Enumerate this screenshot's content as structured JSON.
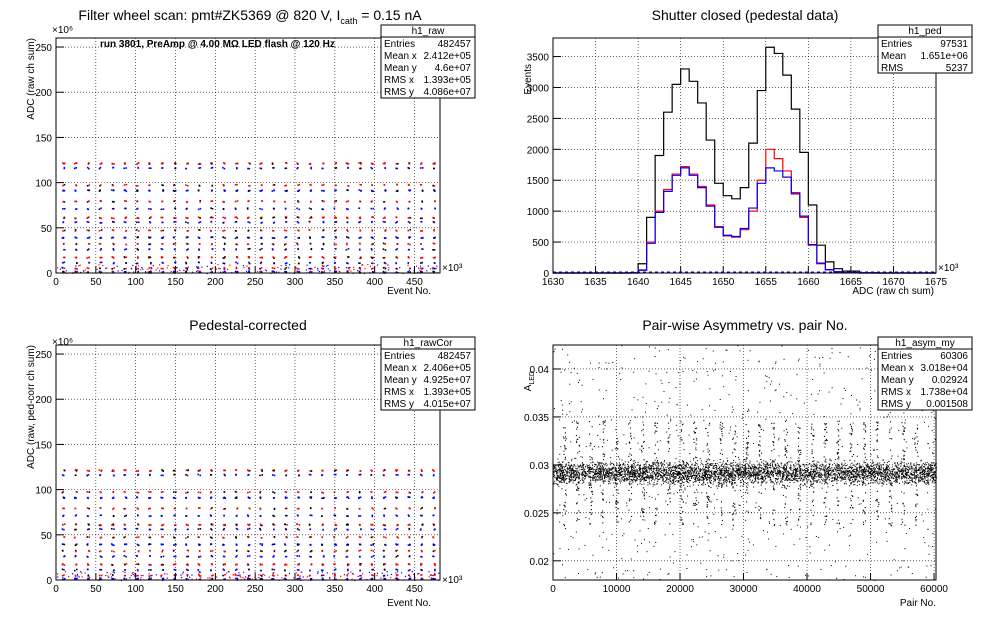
{
  "chart_data": [
    {
      "type": "scatter",
      "title": "Filter wheel scan: pmt#ZK5369 @   820 V, I",
      "title_sub": "cath",
      "title_tail": " = 0.15 nA",
      "annotation": "run 3801, PreAmp @ 4.00 MΩ LED flash @  120 Hz",
      "xlabel": "Event No.",
      "ylabel": "ADC (raw ch sum)",
      "x_exponent": "×10³",
      "y_exponent": "×10⁶",
      "xlim": [
        0,
        482
      ],
      "ylim": [
        0,
        260
      ],
      "xticks": [
        "0",
        "50",
        "100",
        "150",
        "200",
        "250",
        "300",
        "350",
        "400",
        "450"
      ],
      "yticks": [
        "0",
        "50",
        "100",
        "150",
        "200",
        "250"
      ],
      "grid": true,
      "series_colors": [
        "#ff0000",
        "#0000ff"
      ],
      "point_rows": [
        122,
        117,
        98,
        92,
        80,
        72,
        62,
        57,
        48,
        40,
        33,
        27,
        18,
        12,
        6,
        2
      ],
      "stats": {
        "name": "h1_raw",
        "rows": [
          {
            "label": "Entries",
            "value": "482457"
          },
          {
            "label": "Mean x",
            "value": "2.412e+05"
          },
          {
            "label": "Mean y",
            "value": "4.6e+07"
          },
          {
            "label": "RMS x",
            "value": "1.393e+05"
          },
          {
            "label": "RMS y",
            "value": "4.086e+07"
          }
        ]
      }
    },
    {
      "type": "line",
      "title": "Shutter closed (pedestal data)",
      "xlabel": "ADC (raw ch sum)",
      "ylabel": "Events",
      "x_exponent": "×10³",
      "xlim": [
        1630,
        1675
      ],
      "ylim": [
        0,
        3800
      ],
      "xticks": [
        "1630",
        "1635",
        "1640",
        "1645",
        "1650",
        "1655",
        "1660",
        "1665",
        "1670",
        "1675"
      ],
      "yticks": [
        "0",
        "500",
        "1000",
        "1500",
        "2000",
        "2500",
        "3000",
        "3500"
      ],
      "grid": true,
      "x": [
        1630,
        1632,
        1634,
        1636,
        1638,
        1639,
        1640,
        1641,
        1642,
        1643,
        1644,
        1645,
        1646,
        1647,
        1648,
        1649,
        1650,
        1651,
        1652,
        1653,
        1654,
        1655,
        1656,
        1657,
        1658,
        1659,
        1660,
        1661,
        1662,
        1663,
        1664,
        1666,
        1668,
        1670,
        1672,
        1675
      ],
      "series": [
        {
          "color": "#000000",
          "values": [
            0,
            0,
            0,
            0,
            0,
            5,
            150,
            900,
            1900,
            2600,
            3050,
            3300,
            3100,
            2750,
            2150,
            1450,
            1250,
            1200,
            1380,
            2100,
            2950,
            3650,
            3550,
            3200,
            2650,
            1950,
            1100,
            450,
            180,
            70,
            30,
            5,
            0,
            0,
            0,
            0
          ]
        },
        {
          "color": "#ff0000",
          "values": [
            0,
            0,
            0,
            0,
            0,
            0,
            50,
            500,
            1000,
            1350,
            1600,
            1720,
            1600,
            1400,
            1100,
            750,
            600,
            580,
            700,
            1000,
            1500,
            2000,
            1850,
            1650,
            1300,
            900,
            450,
            150,
            50,
            20,
            5,
            0,
            0,
            0,
            0,
            0
          ]
        },
        {
          "color": "#0000ff",
          "values": [
            0,
            0,
            0,
            0,
            0,
            0,
            45,
            480,
            980,
            1320,
            1580,
            1700,
            1580,
            1380,
            1080,
            740,
            610,
            590,
            720,
            1050,
            1450,
            1700,
            1650,
            1550,
            1280,
            920,
            460,
            160,
            55,
            20,
            5,
            0,
            0,
            0,
            0,
            0
          ]
        }
      ],
      "stats": {
        "name": "h1_ped",
        "rows": [
          {
            "label": "Entries",
            "value": "97531"
          },
          {
            "label": "Mean",
            "value": "1.651e+06"
          },
          {
            "label": "RMS",
            "value": "5237"
          }
        ]
      }
    },
    {
      "type": "scatter",
      "title": "Pedestal-corrected",
      "xlabel": "Event No.",
      "ylabel": "ADC (raw, ped-corr ch sum)",
      "x_exponent": "×10³",
      "y_exponent": "×10⁶",
      "xlim": [
        0,
        482
      ],
      "ylim": [
        0,
        260
      ],
      "xticks": [
        "0",
        "50",
        "100",
        "150",
        "200",
        "250",
        "300",
        "350",
        "400",
        "450"
      ],
      "yticks": [
        "0",
        "50",
        "100",
        "150",
        "200",
        "250"
      ],
      "grid": true,
      "series_colors": [
        "#ff0000",
        "#0000ff"
      ],
      "point_rows": [
        122,
        117,
        98,
        92,
        80,
        72,
        62,
        57,
        48,
        40,
        33,
        27,
        18,
        12,
        6,
        2
      ],
      "stats": {
        "name": "h1_rawCor",
        "rows": [
          {
            "label": "Entries",
            "value": "482457"
          },
          {
            "label": "Mean x",
            "value": "2.406e+05"
          },
          {
            "label": "Mean y",
            "value": "4.925e+07"
          },
          {
            "label": "RMS x",
            "value": "1.393e+05"
          },
          {
            "label": "RMS y",
            "value": "4.015e+07"
          }
        ]
      }
    },
    {
      "type": "scatter",
      "title": "Pair-wise Asymmetry vs. pair No.",
      "xlabel": "Pair No.",
      "ylabel": "A",
      "ylabel_sub": "LED",
      "xlim": [
        0,
        60306
      ],
      "ylim": [
        0.018,
        0.0425
      ],
      "xticks": [
        "0",
        "10000",
        "20000",
        "30000",
        "40000",
        "50000",
        "60000"
      ],
      "yticks": [
        "0.02",
        "0.025",
        "0.03",
        "0.035",
        "0.04"
      ],
      "grid": true,
      "band_center": 0.0292,
      "band_half_width": 0.0008,
      "stats": {
        "name": "h1_asym_my",
        "rows": [
          {
            "label": "Entries",
            "value": "60306"
          },
          {
            "label": "Mean x",
            "value": "3.018e+04"
          },
          {
            "label": "Mean y",
            "value": "0.02924"
          },
          {
            "label": "RMS x",
            "value": "1.738e+04"
          },
          {
            "label": "RMS y",
            "value": "0.001508"
          }
        ]
      }
    }
  ]
}
